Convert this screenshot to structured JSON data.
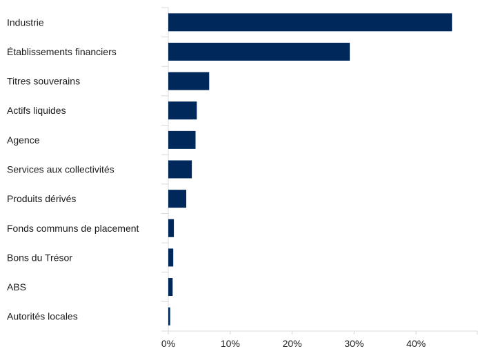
{
  "chart_data": {
    "type": "bar",
    "orientation": "horizontal",
    "categories": [
      "Industrie",
      "Établissements financiers",
      "Titres souverains",
      "Actifs liquides",
      "Agence",
      "Services aux collectivités",
      "Produits dérivés",
      "Fonds communs de placement",
      "Bons du Trésor",
      "ABS",
      "Autorités locales"
    ],
    "values": [
      45.8,
      29.3,
      6.6,
      4.6,
      4.4,
      3.8,
      2.9,
      0.9,
      0.8,
      0.7,
      0.3
    ],
    "xlim": [
      0,
      50
    ],
    "ticks": [
      0,
      10,
      20,
      30,
      40
    ],
    "tick_labels": [
      "0%",
      "10%",
      "20%",
      "30%",
      "40%"
    ],
    "grid": false,
    "bar_color": "#00285a",
    "axis_color": "#d9d9d9",
    "title": "",
    "xlabel": "",
    "ylabel": ""
  }
}
